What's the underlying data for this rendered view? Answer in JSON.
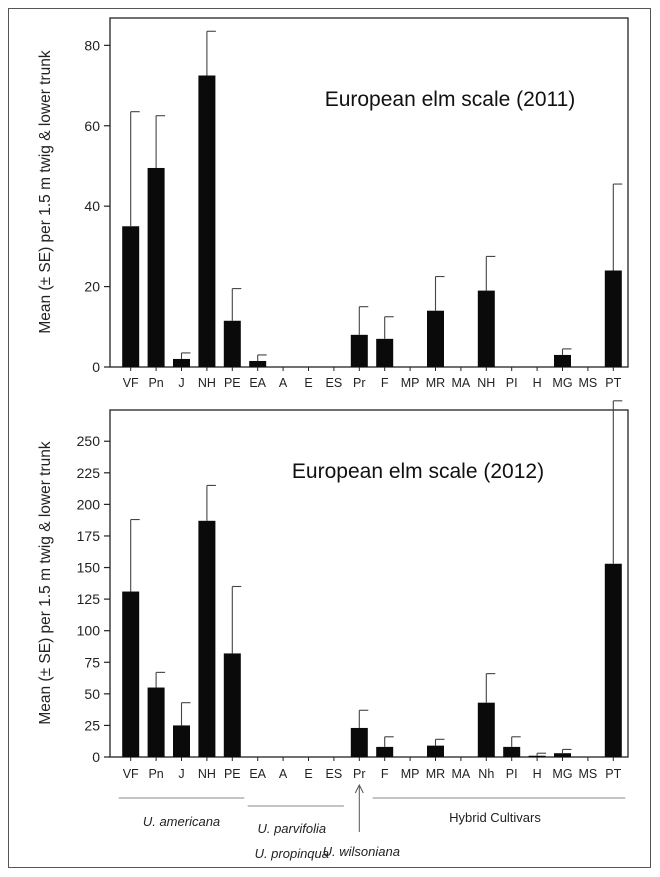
{
  "chart_data": [
    {
      "type": "bar",
      "title": "European elm scale (2011)",
      "ylabel": "Mean (± SE) per 1.5 m twig & lower trunk",
      "ylim": [
        0,
        80
      ],
      "yticks": [
        0,
        20,
        40,
        60,
        80
      ],
      "categories": [
        "VF",
        "Pn",
        "J",
        "NH",
        "PE",
        "EA",
        "A",
        "E",
        "ES",
        "Pr",
        "F",
        "MP",
        "MR",
        "MA",
        "NH",
        "PI",
        "H",
        "MG",
        "MS",
        "PT"
      ],
      "values": [
        35,
        49.5,
        2,
        72.5,
        11.5,
        1.5,
        0,
        0,
        0,
        8,
        7,
        0,
        14,
        0,
        19,
        0,
        0,
        3,
        0,
        24
      ],
      "errors": [
        28.5,
        13,
        1.5,
        11,
        8,
        1.5,
        0,
        0,
        0,
        7,
        5.5,
        0,
        8.5,
        0,
        8.5,
        0,
        0,
        1.5,
        0,
        21.5
      ],
      "bar_color": "#0a0a0a",
      "grid": false
    },
    {
      "type": "bar",
      "title": "European elm scale (2012)",
      "ylabel": "Mean (± SE) per 1.5 m twig & lower trunk",
      "ylim": [
        0,
        250
      ],
      "yticks": [
        0,
        25,
        50,
        75,
        100,
        125,
        150,
        175,
        200,
        225,
        250
      ],
      "categories": [
        "VF",
        "Pn",
        "J",
        "NH",
        "PE",
        "EA",
        "A",
        "E",
        "ES",
        "Pr",
        "F",
        "MP",
        "MR",
        "MA",
        "Nh",
        "PI",
        "H",
        "MG",
        "MS",
        "PT"
      ],
      "values": [
        131,
        55,
        25,
        187,
        82,
        0,
        0,
        0,
        0,
        23,
        8,
        0,
        9,
        0,
        43,
        8,
        1,
        3,
        0,
        153
      ],
      "errors": [
        57,
        12,
        18,
        28,
        53,
        0,
        0,
        0,
        0,
        14,
        8,
        0,
        5,
        0,
        23,
        8,
        2,
        3,
        0,
        129
      ],
      "bar_color": "#0a0a0a",
      "grid": false,
      "groups": [
        {
          "label": "U. americana",
          "italic": true
        },
        {
          "label": "U. parvifolia",
          "italic": true
        },
        {
          "label": "U. propinqua",
          "italic": true
        },
        {
          "label": "U. wilsoniana",
          "italic": true
        },
        {
          "label": "Hybrid Cultivars",
          "italic": false
        }
      ]
    }
  ]
}
